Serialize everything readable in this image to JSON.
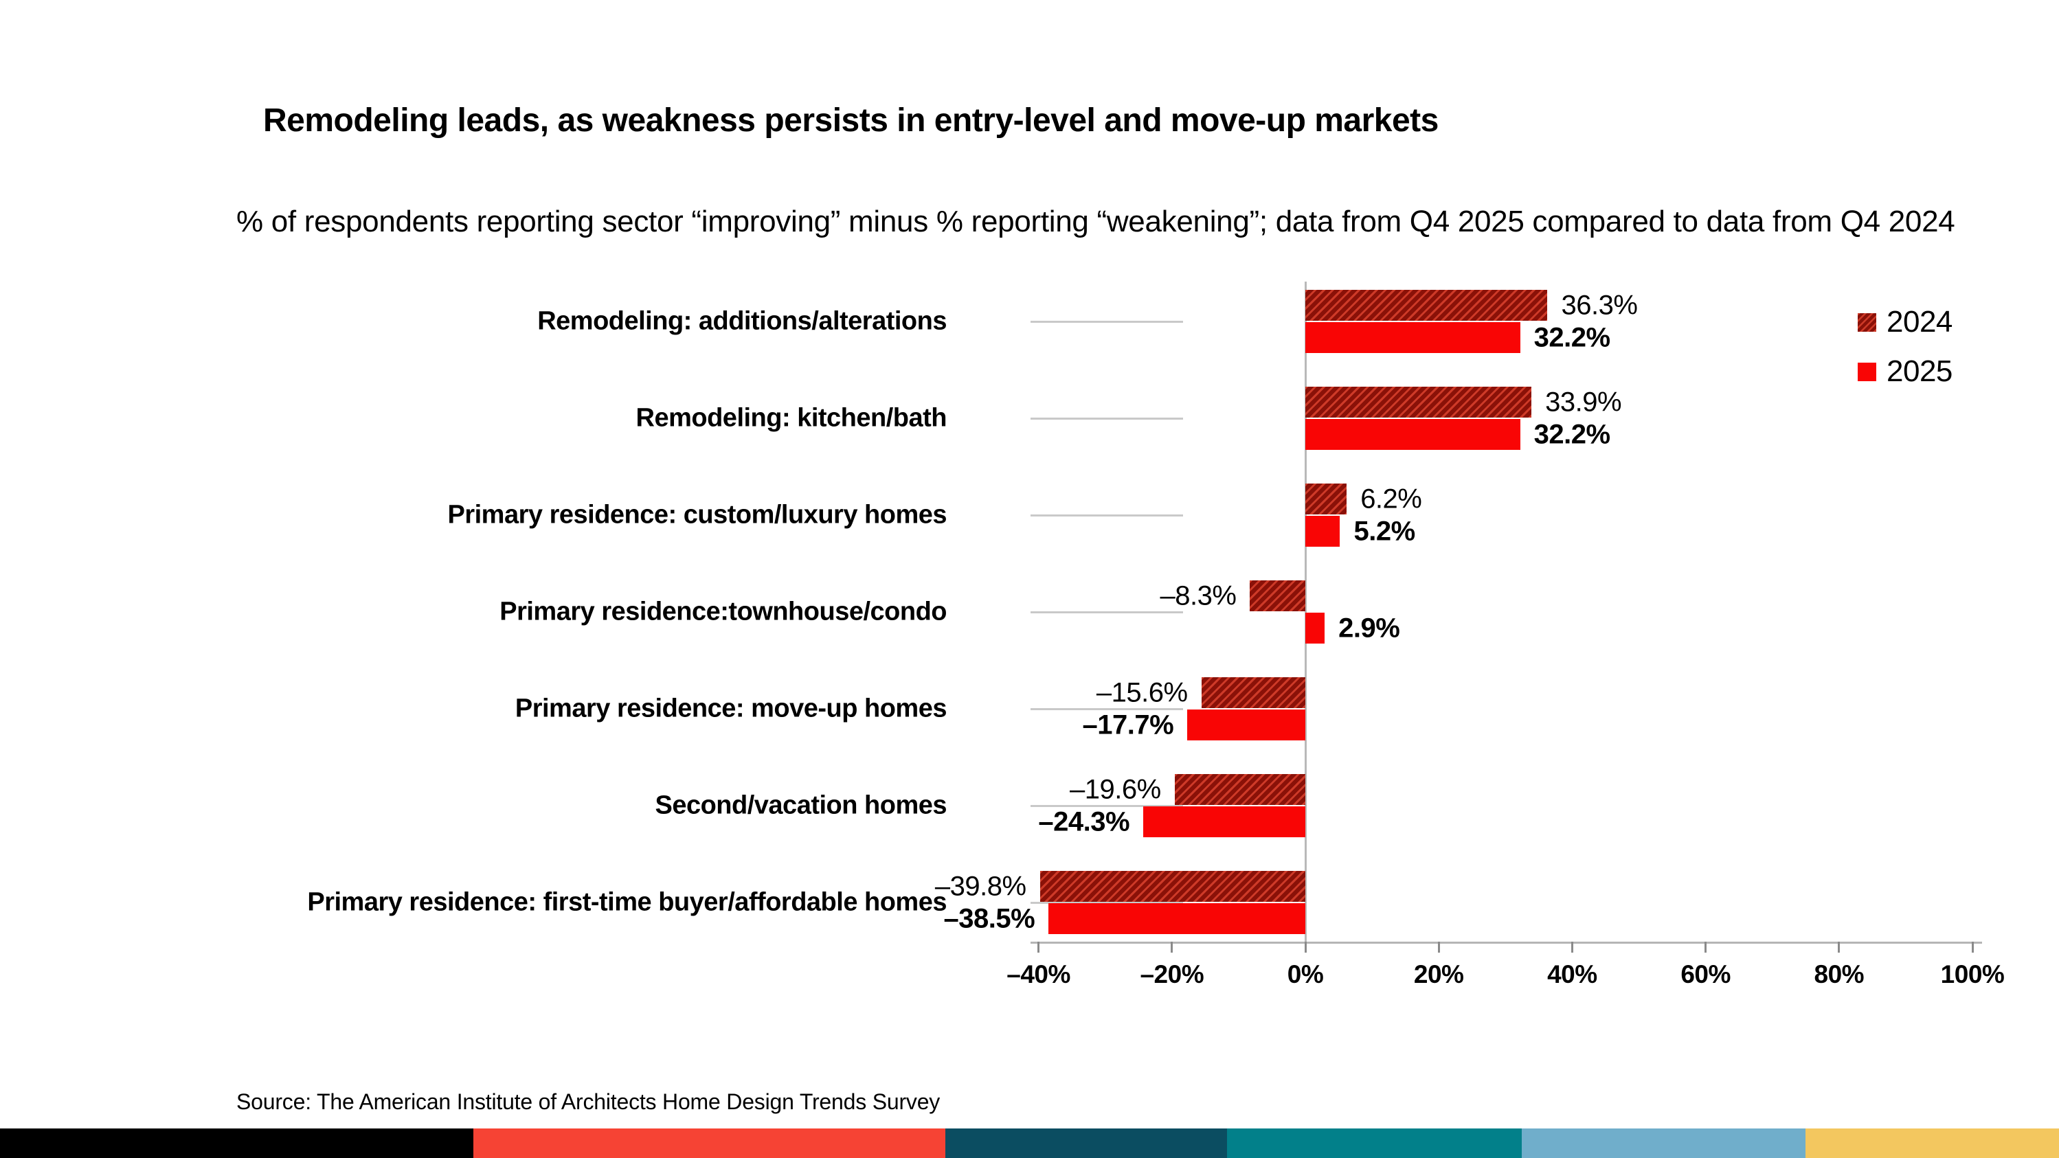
{
  "title": "Remodeling leads, as weakness persists in entry-level and move-up markets",
  "subtitle": "% of respondents reporting sector “improving” minus % reporting “weakening”; data from Q4 2025 compared to data from Q4 2024",
  "source": "Source: The American Institute of Architects Home Design Trends Survey",
  "legend": [
    {
      "label": "2024",
      "swatch": "hatched"
    },
    {
      "label": "2025",
      "swatch": "solid"
    }
  ],
  "colors": {
    "bar_2024_base": "#8a1108",
    "bar_2024_stripe": "#ce3a28",
    "bar_2025": "#f90505",
    "axis_line": "#b5b5b5",
    "tick_mark": "#8a8a8a",
    "leader_line": "#c9c9c9",
    "text": "#000000"
  },
  "chart_data": {
    "type": "bar",
    "orientation": "horizontal",
    "title": "Remodeling leads, as weakness persists in entry-level and move-up markets",
    "xlabel": "",
    "ylabel": "",
    "xlim": [
      -40,
      100
    ],
    "grid": false,
    "legend_position": "top-right",
    "categories": [
      "Remodeling: additions/alterations",
      "Remodeling: kitchen/bath",
      "Primary residence: custom/luxury homes",
      "Primary residence:townhouse/condo",
      "Primary residence: move-up homes",
      "Second/vacation homes",
      "Primary residence: first-time buyer/affordable homes"
    ],
    "series": [
      {
        "name": "2024",
        "values": [
          36.3,
          33.9,
          6.2,
          -8.3,
          -15.6,
          -19.6,
          -39.8
        ],
        "labels": [
          "36.3%",
          "33.9%",
          "6.2%",
          "–8.3%",
          "–15.6%",
          "–19.6%",
          "–39.8%"
        ]
      },
      {
        "name": "2025",
        "values": [
          32.2,
          32.2,
          5.2,
          2.9,
          -17.7,
          -24.3,
          -38.5
        ],
        "labels": [
          "32.2%",
          "32.2%",
          "5.2%",
          "2.9%",
          "–17.7%",
          "–24.3%",
          "–38.5%"
        ]
      }
    ],
    "x_ticks": {
      "labels": [
        "–40%",
        "–20%",
        "0%",
        "20%",
        "40%",
        "60%",
        "80%",
        "100%"
      ],
      "values": [
        -40,
        -20,
        0,
        20,
        40,
        60,
        80,
        100
      ]
    }
  },
  "footer_bands": [
    {
      "name": "black",
      "color": "#000000",
      "width_pct": 23.0
    },
    {
      "name": "red",
      "color": "#f64334",
      "width_pct": 22.9
    },
    {
      "name": "dark-navy",
      "color": "#0b4d61",
      "width_pct": 13.7
    },
    {
      "name": "teal",
      "color": "#02808a",
      "width_pct": 14.3
    },
    {
      "name": "light-blue",
      "color": "#70aecb",
      "width_pct": 13.8
    },
    {
      "name": "yellow",
      "color": "#f3c75f",
      "width_pct": 12.3
    }
  ]
}
